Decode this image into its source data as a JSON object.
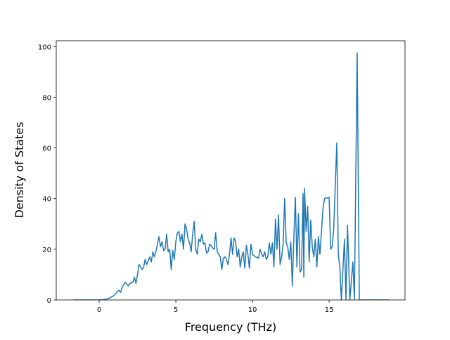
{
  "chart_data": {
    "type": "line",
    "x_label": "Frequency (THz)",
    "y_label": "Density of States",
    "xlim": [
      -2.8,
      19.95
    ],
    "ylim": [
      0,
      102.3
    ],
    "xticks": [
      0,
      5,
      10,
      15
    ],
    "yticks": [
      0,
      20,
      40,
      60,
      80,
      100
    ],
    "series": [
      {
        "color": "#1f77b4",
        "x": [
          -1.7,
          0,
          0.3,
          0.6,
          0.9,
          1.1,
          1.2,
          1.3,
          1.4,
          1.5,
          1.7,
          1.9,
          2.0,
          2.2,
          2.3,
          2.4,
          2.5,
          2.6,
          2.7,
          2.8,
          2.9,
          3.0,
          3.1,
          3.3,
          3.4,
          3.5,
          3.6,
          3.7,
          3.8,
          3.9,
          4.0,
          4.1,
          4.2,
          4.3,
          4.4,
          4.5,
          4.6,
          4.7,
          4.8,
          4.9,
          5.0,
          5.1,
          5.2,
          5.3,
          5.4,
          5.5,
          5.6,
          5.7,
          5.8,
          5.9,
          6.0,
          6.1,
          6.2,
          6.3,
          6.4,
          6.5,
          6.6,
          6.7,
          6.8,
          6.9,
          7.0,
          7.1,
          7.2,
          7.3,
          7.4,
          7.5,
          7.6,
          7.7,
          7.8,
          7.9,
          8.0,
          8.1,
          8.2,
          8.3,
          8.4,
          8.5,
          8.6,
          8.7,
          8.8,
          8.9,
          9.0,
          9.1,
          9.2,
          9.3,
          9.4,
          9.5,
          9.6,
          9.7,
          9.8,
          9.9,
          10.0,
          10.2,
          10.4,
          10.5,
          10.6,
          10.7,
          10.8,
          10.9,
          11.0,
          11.1,
          11.2,
          11.3,
          11.4,
          11.5,
          11.6,
          11.7,
          11.8,
          11.9,
          12.0,
          12.1,
          12.2,
          12.3,
          12.4,
          12.5,
          12.6,
          12.7,
          12.8,
          12.9,
          13.0,
          13.1,
          13.2,
          13.3,
          13.35,
          13.4,
          13.5,
          13.6,
          13.7,
          13.8,
          13.9,
          14.0,
          14.1,
          14.2,
          14.3,
          14.4,
          14.6,
          14.7,
          15.0,
          15.1,
          15.2,
          15.3,
          15.5,
          15.6,
          15.7,
          15.8,
          16.0,
          16.1,
          16.2,
          16.35,
          16.55,
          16.65,
          16.83,
          16.97,
          18.9
        ],
        "values": [
          0,
          0,
          0.1,
          0.5,
          1.5,
          2.5,
          3.5,
          3.8,
          3,
          5,
          7,
          5.5,
          6.5,
          7,
          9,
          6.5,
          10,
          14,
          13,
          12,
          13,
          16,
          14,
          17,
          15,
          19,
          17,
          19,
          22,
          25,
          21,
          23,
          19.5,
          20,
          26,
          19,
          20,
          12,
          19.5,
          16,
          23,
          26.5,
          27,
          23,
          26,
          20,
          30,
          28,
          24,
          22.5,
          19,
          26,
          31,
          20,
          18,
          24,
          23,
          26,
          22,
          22.5,
          18.5,
          19,
          22,
          21.5,
          20.5,
          20,
          26.5,
          19,
          18,
          17,
          12,
          16.5,
          17,
          16,
          14,
          18,
          24.5,
          18,
          24.5,
          23,
          17,
          20,
          13,
          17,
          19,
          12.5,
          21.5,
          18,
          12.5,
          22,
          18,
          17,
          16.5,
          20,
          18,
          17,
          19,
          16,
          17,
          22.5,
          18,
          22.5,
          13,
          32,
          20,
          33.5,
          14,
          17,
          22,
          40,
          22.5,
          21,
          16,
          23,
          5.5,
          25,
          40.5,
          13,
          34,
          11,
          12,
          42,
          9,
          44,
          27,
          37,
          15,
          31.5,
          21,
          17,
          24,
          13,
          25,
          18,
          36,
          40,
          40.5,
          20,
          21,
          28,
          62,
          18,
          13,
          0,
          24,
          0,
          29.5,
          0,
          15,
          0,
          97.5,
          0,
          0
        ]
      }
    ]
  }
}
